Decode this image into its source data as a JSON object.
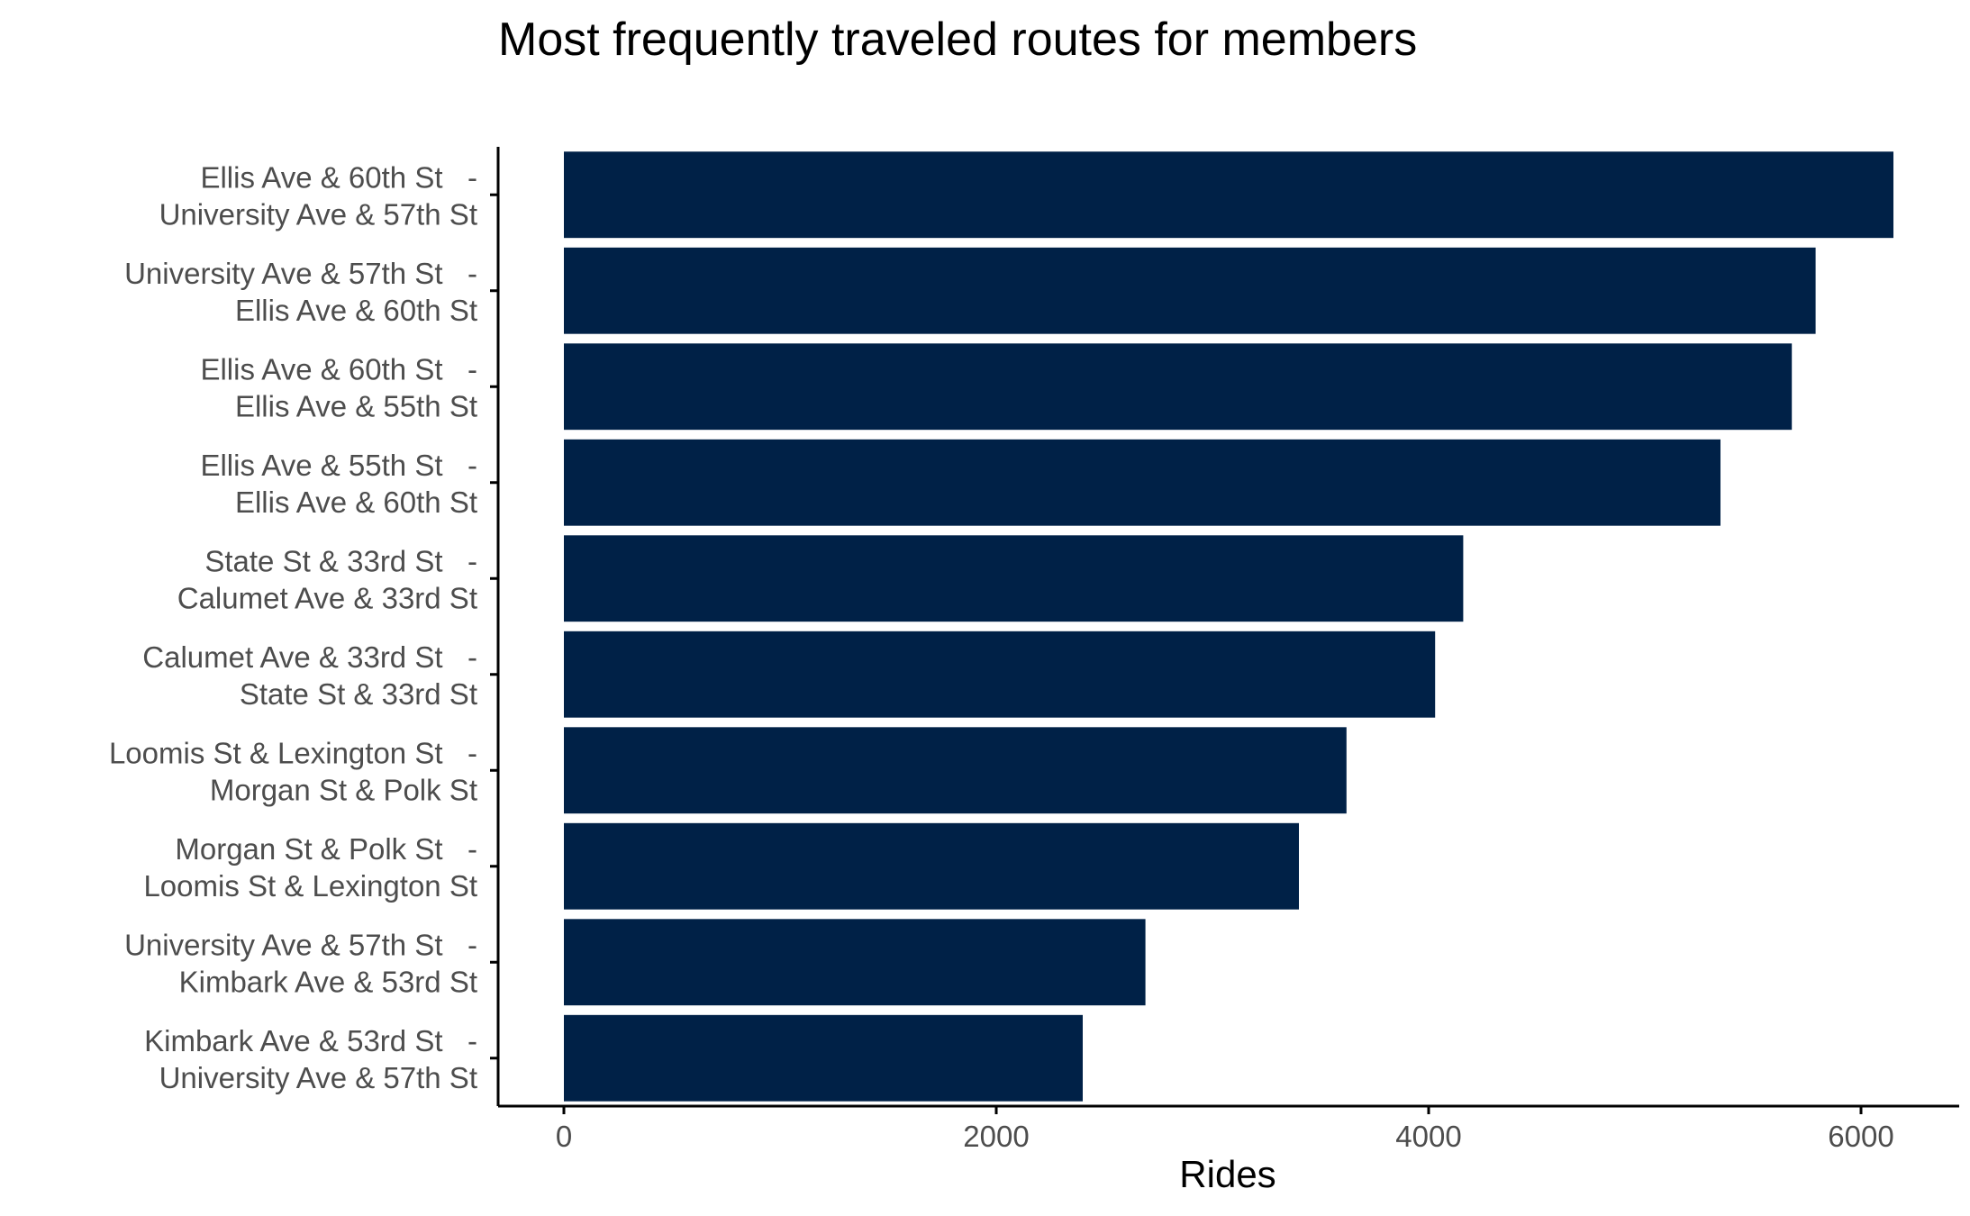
{
  "chart_data": {
    "type": "bar",
    "orientation": "horizontal",
    "title": "Most frequently traveled routes for members",
    "xlabel": "Rides",
    "ylabel": "",
    "xlim": [
      -300,
      6450
    ],
    "x_ticks": [
      0,
      2000,
      4000,
      6000
    ],
    "grid": false,
    "bar_color": "#002147",
    "categories": [
      {
        "line1": "Ellis Ave & 60th St   -",
        "line2": "University Ave & 57th St",
        "value": 6150
      },
      {
        "line1": "University Ave & 57th St   -",
        "line2": "Ellis Ave & 60th St",
        "value": 5790
      },
      {
        "line1": "Ellis Ave & 60th St   -",
        "line2": "Ellis Ave & 55th St",
        "value": 5680
      },
      {
        "line1": "Ellis Ave & 55th St   -",
        "line2": "Ellis Ave & 60th St",
        "value": 5350
      },
      {
        "line1": "State St & 33rd St   -",
        "line2": "Calumet Ave & 33rd St",
        "value": 4160
      },
      {
        "line1": "Calumet Ave & 33rd St   -",
        "line2": "State St & 33rd St",
        "value": 4030
      },
      {
        "line1": "Loomis St & Lexington St   -",
        "line2": "Morgan St & Polk St",
        "value": 3620
      },
      {
        "line1": "Morgan St & Polk St   -",
        "line2": "Loomis St & Lexington St",
        "value": 3400
      },
      {
        "line1": "University Ave & 57th St   -",
        "line2": "Kimbark Ave & 53rd St",
        "value": 2690
      },
      {
        "line1": "Kimbark Ave & 53rd St   -",
        "line2": "University Ave & 57th St",
        "value": 2400
      }
    ]
  }
}
